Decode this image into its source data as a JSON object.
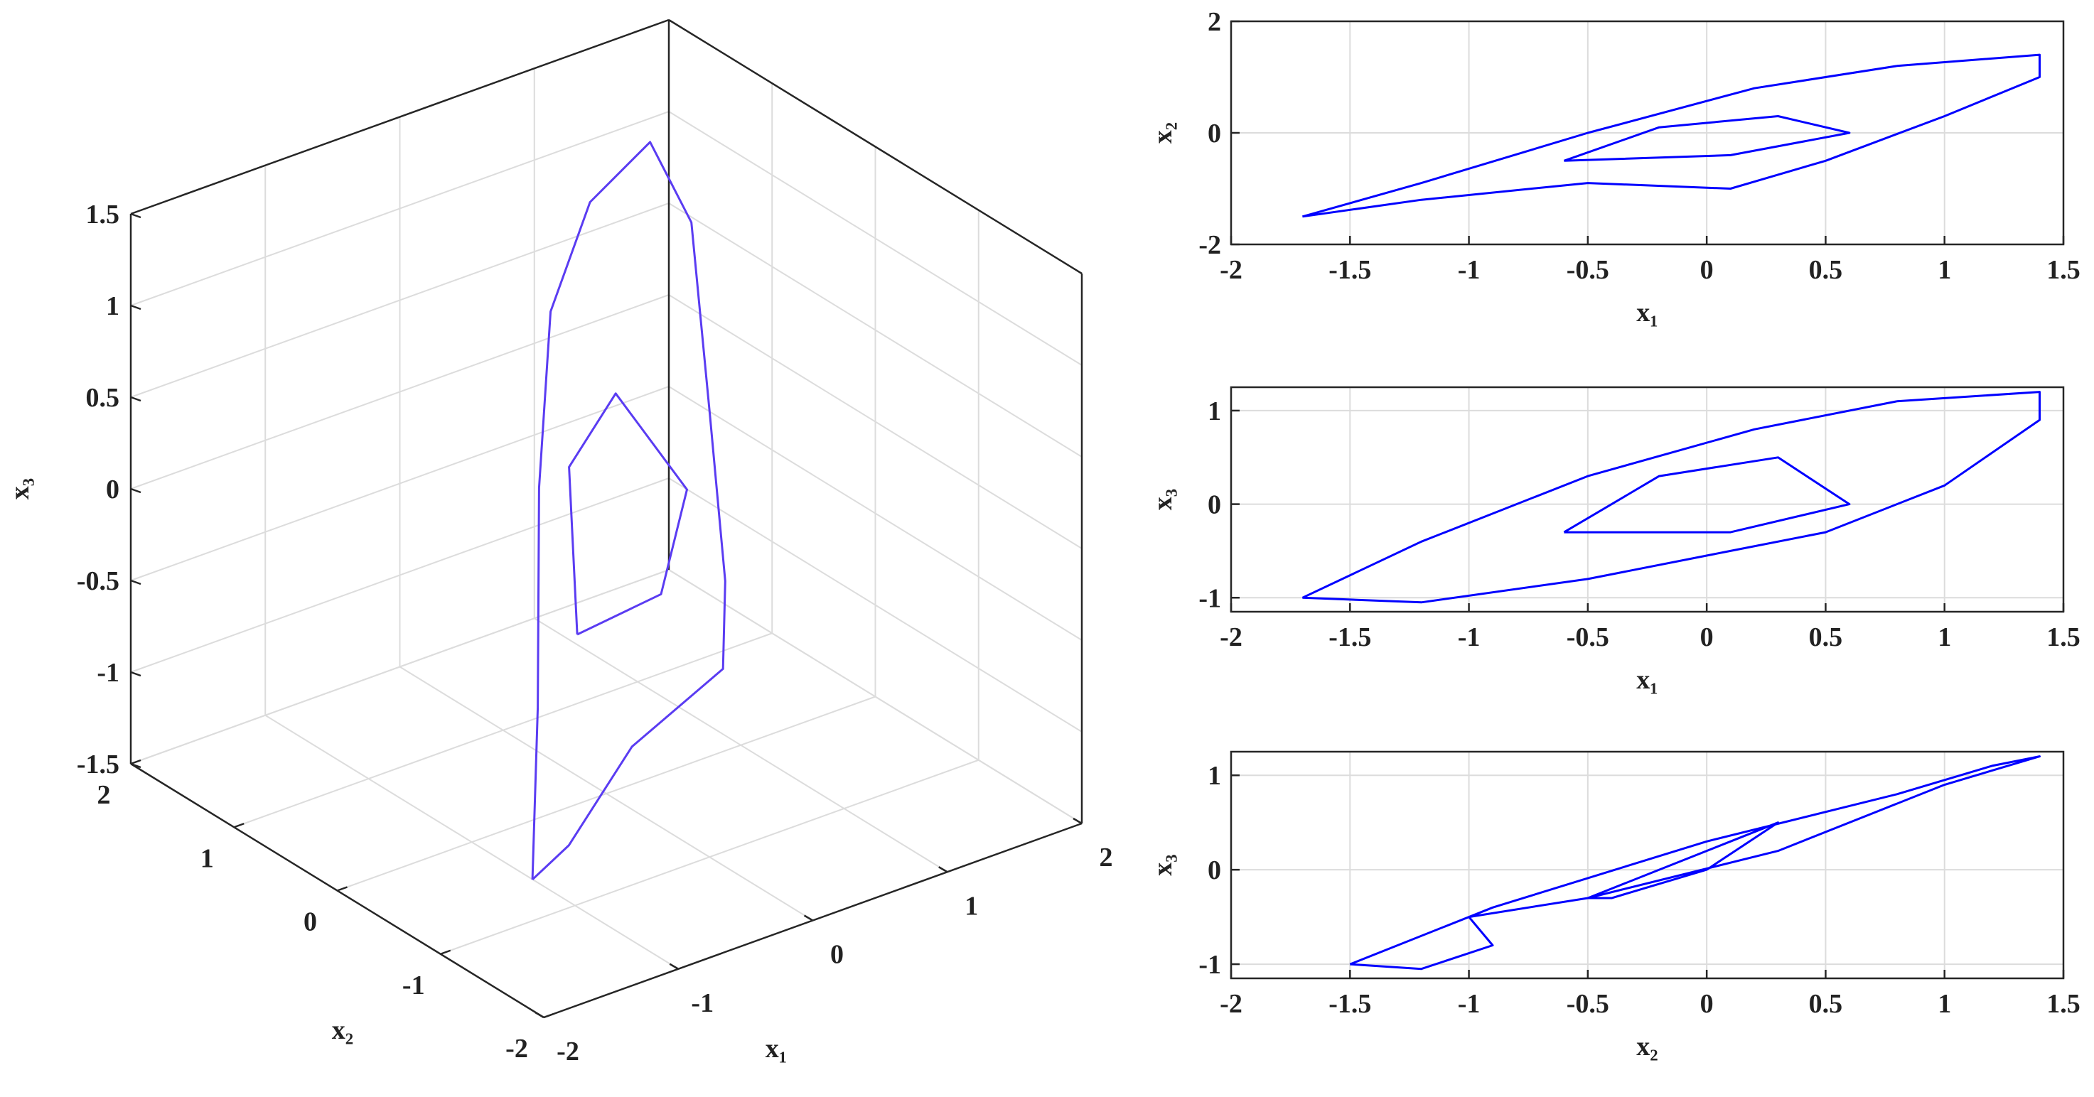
{
  "chart_data": [
    {
      "type": "line3d",
      "xlabel": "x₁",
      "ylabel": "x₂",
      "zlabel": "x₃",
      "xlim": [
        -2,
        2
      ],
      "ylim": [
        -2,
        2
      ],
      "zlim": [
        -1.5,
        1.5
      ],
      "xticks": [
        -2,
        -1,
        0,
        1,
        2
      ],
      "yticks": [
        -2,
        -1,
        0,
        1,
        2
      ],
      "zticks": [
        -1.5,
        -1,
        -0.5,
        0,
        0.5,
        1,
        1.5
      ],
      "grid": true,
      "series": [
        {
          "color": "#5a3cf2",
          "x": [
            -1.7,
            -1.2,
            -0.5,
            0.2,
            0.8,
            1.4,
            1.4,
            1.0,
            0.5,
            0.1,
            -0.5,
            -1.2,
            -1.7,
            null,
            -0.6,
            -0.2,
            0.3,
            0.6,
            0.1,
            -0.6
          ],
          "y": [
            -1.5,
            -0.9,
            0.0,
            0.8,
            1.2,
            1.4,
            1.0,
            0.3,
            -0.5,
            -1.0,
            -0.9,
            -1.2,
            -1.5,
            null,
            -0.5,
            0.1,
            0.3,
            0.0,
            -0.4,
            -0.5
          ],
          "z": [
            -1.0,
            -0.4,
            0.3,
            0.8,
            1.1,
            1.2,
            0.9,
            0.2,
            -0.3,
            -0.5,
            -0.8,
            -1.05,
            -1.0,
            null,
            -0.3,
            0.3,
            0.5,
            0.0,
            -0.3,
            -0.3
          ]
        }
      ]
    },
    {
      "type": "line",
      "xlabel": "x₁",
      "ylabel": "x₂",
      "xlim": [
        -2,
        1.5
      ],
      "ylim": [
        -2,
        2
      ],
      "xticks": [
        -2,
        -1.5,
        -1,
        -0.5,
        0,
        0.5,
        1,
        1.5
      ],
      "yticks": [
        -2,
        0,
        2
      ],
      "grid": true,
      "series": [
        {
          "color": "#0000ff",
          "x": [
            -1.7,
            -1.2,
            -0.5,
            0.2,
            0.8,
            1.4,
            1.4,
            1.0,
            0.5,
            0.1,
            -0.5,
            -1.2,
            -1.7,
            null,
            -0.6,
            -0.2,
            0.3,
            0.6,
            0.1,
            -0.6
          ],
          "y": [
            -1.5,
            -0.9,
            0.0,
            0.8,
            1.2,
            1.4,
            1.0,
            0.3,
            -0.5,
            -1.0,
            -0.9,
            -1.2,
            -1.5,
            null,
            -0.5,
            0.1,
            0.3,
            0.0,
            -0.4,
            -0.5
          ]
        }
      ]
    },
    {
      "type": "line",
      "xlabel": "x₁",
      "ylabel": "x₃",
      "xlim": [
        -2,
        1.5
      ],
      "ylim": [
        -1.15,
        1.25
      ],
      "xticks": [
        -2,
        -1.5,
        -1,
        -0.5,
        0,
        0.5,
        1,
        1.5
      ],
      "yticks": [
        -1,
        0,
        1
      ],
      "grid": true,
      "series": [
        {
          "color": "#0000ff",
          "x": [
            -1.7,
            -1.2,
            -0.5,
            0.2,
            0.8,
            1.4,
            1.4,
            1.0,
            0.5,
            0.1,
            -0.5,
            -1.2,
            -1.7,
            null,
            -0.6,
            -0.2,
            0.3,
            0.6,
            0.1,
            -0.6
          ],
          "y": [
            -1.0,
            -0.4,
            0.3,
            0.8,
            1.1,
            1.2,
            0.9,
            0.2,
            -0.3,
            -0.5,
            -0.8,
            -1.05,
            -1.0,
            null,
            -0.3,
            0.3,
            0.5,
            0.0,
            -0.3,
            -0.3
          ]
        }
      ]
    },
    {
      "type": "line",
      "xlabel": "x₂",
      "ylabel": "x₃",
      "xlim": [
        -2,
        1.5
      ],
      "ylim": [
        -1.15,
        1.25
      ],
      "xticks": [
        -2,
        -1.5,
        -1,
        -0.5,
        0,
        0.5,
        1,
        1.5
      ],
      "yticks": [
        -1,
        0,
        1
      ],
      "grid": true,
      "series": [
        {
          "color": "#0000ff",
          "x": [
            -1.5,
            -0.9,
            0.0,
            0.8,
            1.2,
            1.4,
            1.0,
            0.3,
            -0.5,
            -1.0,
            -0.9,
            -1.2,
            -1.5,
            null,
            -0.5,
            0.1,
            0.3,
            0.0,
            -0.4,
            -0.5
          ],
          "y": [
            -1.0,
            -0.4,
            0.3,
            0.8,
            1.1,
            1.2,
            0.9,
            0.2,
            -0.3,
            -0.5,
            -0.8,
            -1.05,
            -1.0,
            null,
            -0.3,
            0.3,
            0.5,
            0.0,
            -0.3,
            -0.3
          ]
        }
      ]
    }
  ]
}
